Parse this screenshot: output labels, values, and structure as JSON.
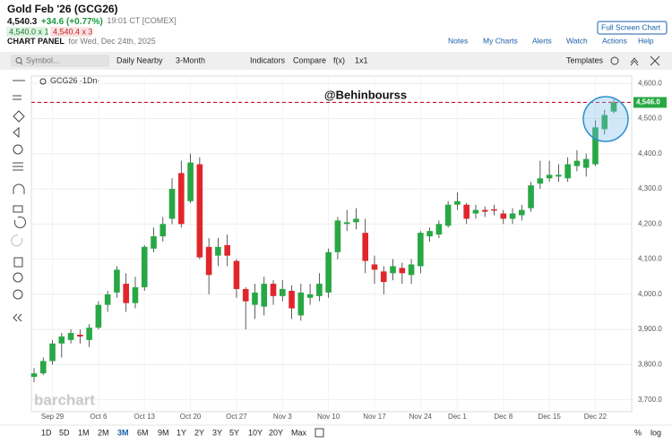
{
  "header": {
    "title": "Gold Feb '26 (GCG26)",
    "price": "4,540.3",
    "change": "+34.6 (+0.77%)",
    "time": "19:01 CT [COMEX]",
    "bid": "4,540.0 x 1",
    "ask": "4,540.4 x 3",
    "panel_label": "CHART PANEL",
    "panel_date": "for Wed, Dec 24th, 2025",
    "fullscreen": "Full Screen Chart",
    "links": [
      "Notes",
      "My Charts",
      "Alerts",
      "Watch",
      "Actions",
      "Help"
    ]
  },
  "toolbar": {
    "symbol_placeholder": "Symbol...",
    "items": [
      "Daily Nearby",
      "3-Month",
      "Indicators",
      "Compare",
      "f(x)",
      "1x1"
    ],
    "templates": "Templates"
  },
  "watermark": "barchart",
  "range_buttons": [
    "1D",
    "5D",
    "1M",
    "2M",
    "3M",
    "6M",
    "9M",
    "1Y",
    "2Y",
    "3Y",
    "5Y",
    "10Y",
    "20Y",
    "Max"
  ],
  "bottom_right": [
    "%",
    "log"
  ],
  "chart_data": {
    "type": "candlestick",
    "legend_label": "GCG26 ·1Dn·",
    "annotation": "@Behinbourss",
    "up_color": "#27a844",
    "down_color": "#e0262b",
    "last_price": 4546,
    "last_price_label": "4,546.0",
    "last_price_color": "#c8102e",
    "categories": [
      null,
      null,
      "Sep 29",
      null,
      null,
      null,
      null,
      "Oct 6",
      null,
      null,
      null,
      null,
      "Oct 13",
      null,
      null,
      null,
      null,
      "Oct 20",
      null,
      null,
      null,
      null,
      "Oct 27",
      null,
      null,
      null,
      null,
      "Nov 3",
      null,
      null,
      null,
      null,
      "Nov 10",
      null,
      null,
      null,
      null,
      "Nov 17",
      null,
      null,
      null,
      null,
      "Nov 24",
      null,
      null,
      null,
      "Dec 1",
      null,
      null,
      null,
      null,
      "Dec 8",
      null,
      null,
      null,
      null,
      "Dec 15",
      null,
      null,
      null,
      null,
      "Dec 22",
      null,
      null
    ],
    "open": [
      3765,
      3775,
      3810,
      3860,
      3870,
      3885,
      3870,
      3905,
      3970,
      4005,
      4030,
      3975,
      4020,
      4130,
      4165,
      4215,
      4345,
      4265,
      4370,
      4135,
      4110,
      4140,
      4095,
      4015,
      3970,
      3965,
      4030,
      3995,
      4010,
      3940,
      3990,
      3995,
      4005,
      4120,
      4200,
      4205,
      4175,
      4085,
      4065,
      4060,
      4075,
      4055,
      4080,
      4165,
      4170,
      4195,
      4255,
      4255,
      4230,
      4240,
      4242,
      4230,
      4215,
      4225,
      4245,
      4315,
      4330,
      4335,
      4330,
      4365,
      4360,
      4370,
      4470,
      4520
    ],
    "high": [
      3790,
      3820,
      3870,
      3890,
      3900,
      3900,
      3915,
      3980,
      4010,
      4080,
      4060,
      4050,
      4140,
      4190,
      4220,
      4330,
      4380,
      4400,
      4390,
      4160,
      4160,
      4170,
      4100,
      4020,
      4030,
      4050,
      4040,
      4040,
      4025,
      4030,
      4030,
      4060,
      4130,
      4220,
      4240,
      4245,
      4215,
      4110,
      4080,
      4100,
      4090,
      4100,
      4180,
      4190,
      4210,
      4265,
      4290,
      4260,
      4255,
      4250,
      4255,
      4240,
      4245,
      4255,
      4320,
      4380,
      4380,
      4370,
      4390,
      4410,
      4400,
      4495,
      4525,
      4555
    ],
    "low": [
      3750,
      3770,
      3800,
      3820,
      3860,
      3860,
      3850,
      3900,
      3950,
      3990,
      3950,
      3960,
      4010,
      4120,
      4150,
      4200,
      4190,
      4260,
      4100,
      4000,
      4080,
      4080,
      3990,
      3900,
      3930,
      3940,
      3970,
      3980,
      3930,
      3925,
      3970,
      3980,
      3990,
      4100,
      4180,
      4185,
      4060,
      4030,
      4000,
      4040,
      4030,
      4030,
      4060,
      4150,
      4160,
      4190,
      4240,
      4200,
      4215,
      4220,
      4225,
      4200,
      4200,
      4210,
      4235,
      4300,
      4320,
      4320,
      4320,
      4350,
      4335,
      4365,
      4455,
      4515
    ],
    "close": [
      3775,
      3810,
      3860,
      3880,
      3890,
      3880,
      3905,
      3970,
      4000,
      4070,
      3975,
      4020,
      4135,
      4165,
      4200,
      4300,
      4200,
      4375,
      4105,
      4055,
      4135,
      4110,
      4015,
      3980,
      4005,
      4030,
      3995,
      4015,
      3960,
      4005,
      4000,
      4030,
      4120,
      4210,
      4205,
      4215,
      4095,
      4070,
      4035,
      4080,
      4060,
      4085,
      4175,
      4180,
      4200,
      4255,
      4265,
      4215,
      4240,
      4235,
      4238,
      4215,
      4230,
      4240,
      4310,
      4330,
      4340,
      4340,
      4370,
      4380,
      4385,
      4475,
      4510,
      4546
    ],
    "ylim": [
      3666,
      4621
    ],
    "yticks": [
      {
        "value": 3700,
        "label": "3,700.0"
      },
      {
        "value": 3800,
        "label": "3,800.0"
      },
      {
        "value": 3900,
        "label": "3,900.0"
      },
      {
        "value": 4000,
        "label": "4,000.0"
      },
      {
        "value": 4100,
        "label": "4,100.0"
      },
      {
        "value": 4200,
        "label": "4,200.0"
      },
      {
        "value": 4300,
        "label": "4,300.0"
      },
      {
        "value": 4400,
        "label": "4,400.0"
      },
      {
        "value": 4500,
        "label": "4,500.0"
      },
      {
        "value": 4600,
        "label": "4,600.0"
      }
    ],
    "grid": true
  }
}
